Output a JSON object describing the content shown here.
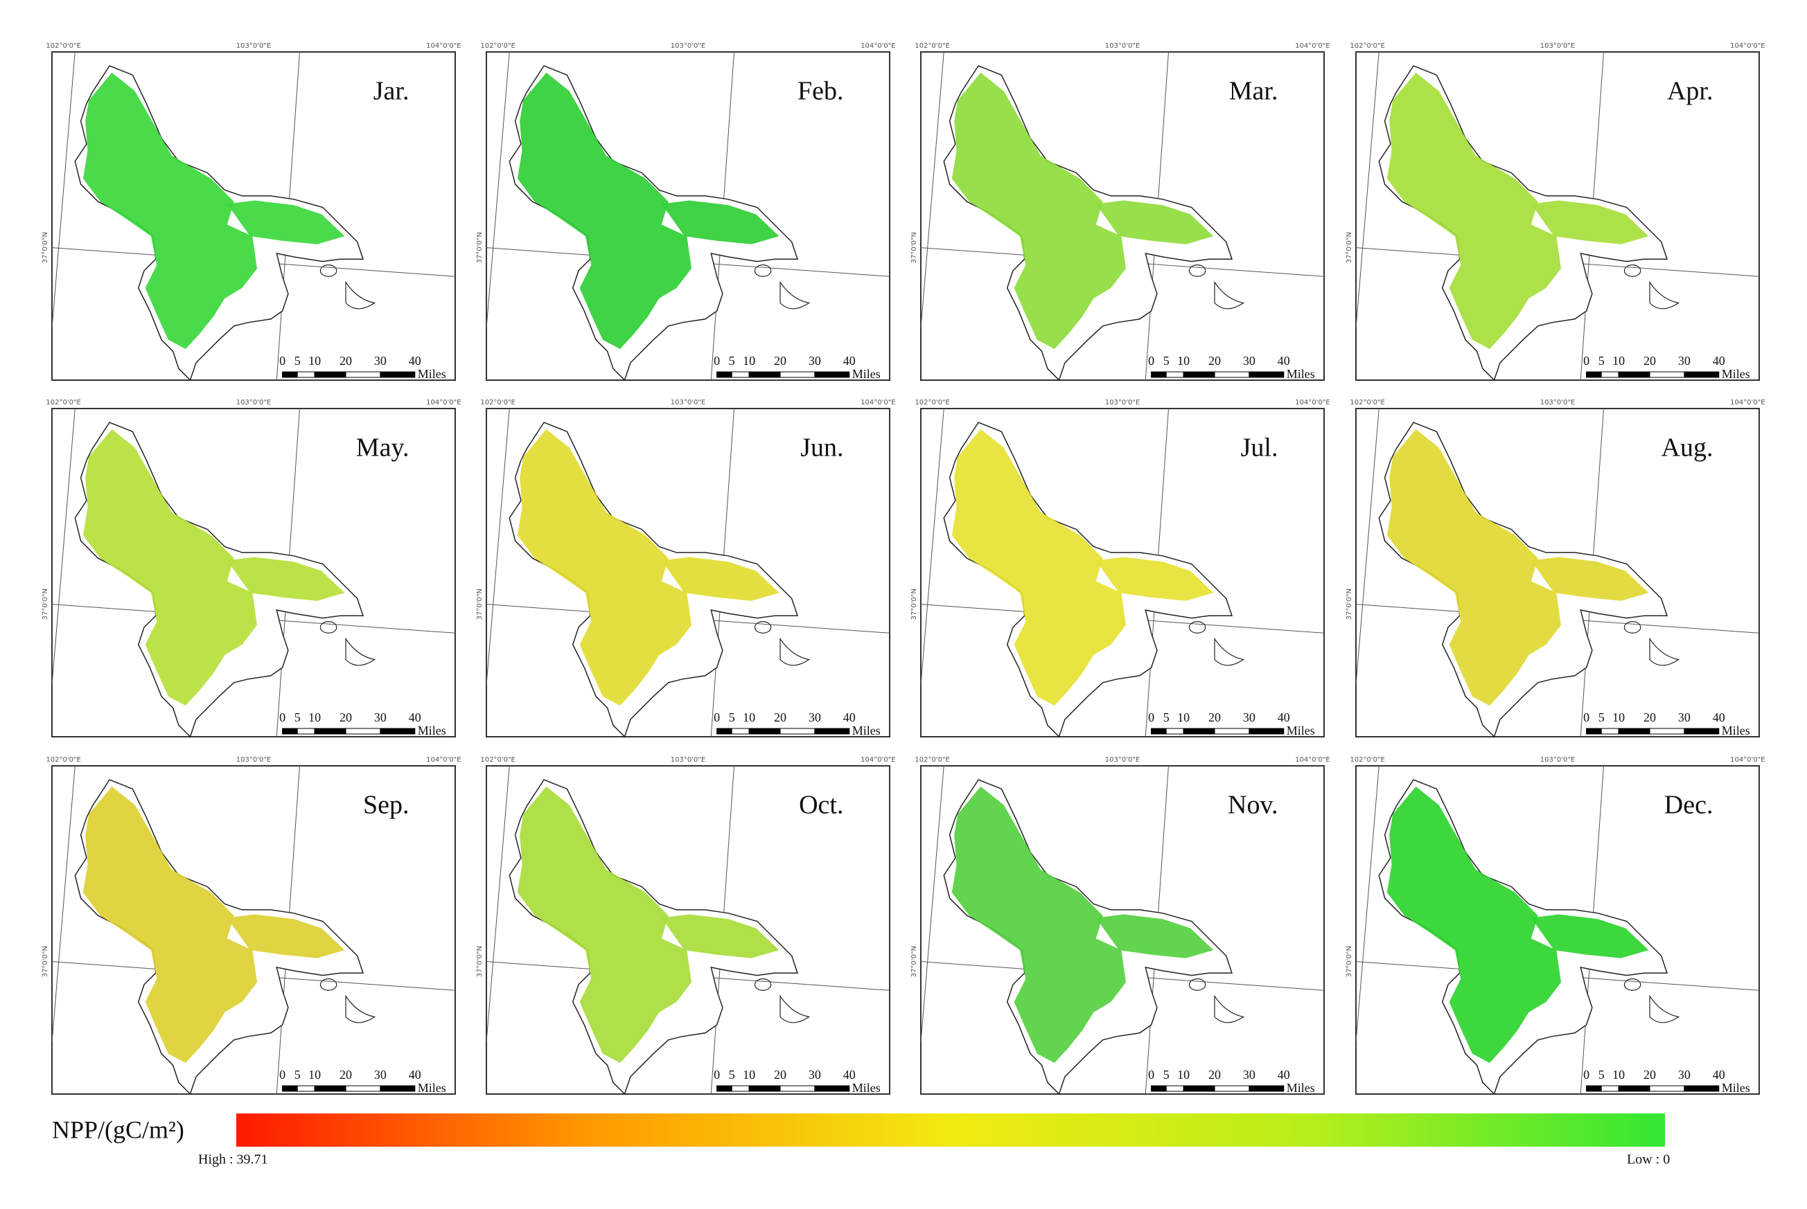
{
  "panels": [
    {
      "label": "Jar.",
      "color": "#3ad83a"
    },
    {
      "label": "Feb.",
      "color": "#2fcf35"
    },
    {
      "label": "Mar.",
      "color": "#8edc3c"
    },
    {
      "label": "Apr.",
      "color": "#a6de3a"
    },
    {
      "label": "May.",
      "color": "#b6e03a"
    },
    {
      "label": "Jun.",
      "color": "#e2dc30"
    },
    {
      "label": "Jul.",
      "color": "#e6e232"
    },
    {
      "label": "Aug.",
      "color": "#e0d932"
    },
    {
      "label": "Sep.",
      "color": "#ddd032"
    },
    {
      "label": "Oct.",
      "color": "#a8dc3a"
    },
    {
      "label": "Nov.",
      "color": "#55d040"
    },
    {
      "label": "Dec.",
      "color": "#2ed42e"
    }
  ],
  "graticule_labels": [
    "102°0'0\"E",
    "103°0'0\"E",
    "104°0'0\"E",
    "37°0'0\"N"
  ],
  "scale_bar": {
    "labels": [
      "0",
      "5",
      "10",
      "20",
      "30",
      "40",
      "Miles"
    ]
  },
  "legend": {
    "title": "NPP/(gC/m²)",
    "high_label": "High : 39.71",
    "low_label": "Low : 0",
    "colors": [
      "#ff1a00",
      "#ff9a00",
      "#f2ea10",
      "#b8ee1a",
      "#33e633"
    ]
  }
}
